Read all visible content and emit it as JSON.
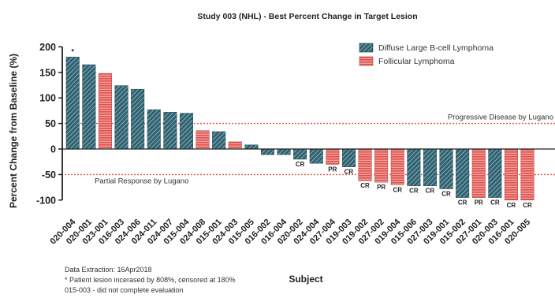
{
  "chart_data": {
    "type": "bar",
    "title": "Study 003 (NHL) - Best Percent Change in Target Lesion",
    "xlabel": "Subject",
    "ylabel": "Percent Change from Baseline (%)",
    "ylim": [
      -115,
      200
    ],
    "yticks": [
      200,
      150,
      100,
      50,
      0,
      -50,
      -100
    ],
    "grid": false,
    "legend_position": "top-right",
    "series": [
      {
        "name": "Diffuse Large B-cell Lymphoma",
        "color": "#2f6170",
        "pattern": "diagonal-hatch"
      },
      {
        "name": "Follicular Lymphoma",
        "color": "#e0534f",
        "pattern": "horizontal-stripes"
      }
    ],
    "bars": [
      {
        "subject": "020-004",
        "value": 180,
        "series": 0,
        "label": "*"
      },
      {
        "subject": "020-001",
        "value": 165,
        "series": 0,
        "label": ""
      },
      {
        "subject": "023-001",
        "value": 148,
        "series": 1,
        "label": ""
      },
      {
        "subject": "016-003",
        "value": 124,
        "series": 0,
        "label": ""
      },
      {
        "subject": "024-006",
        "value": 117,
        "series": 0,
        "label": ""
      },
      {
        "subject": "024-011",
        "value": 77,
        "series": 0,
        "label": ""
      },
      {
        "subject": "024-007",
        "value": 72,
        "series": 0,
        "label": ""
      },
      {
        "subject": "015-004",
        "value": 70,
        "series": 0,
        "label": ""
      },
      {
        "subject": "024-008",
        "value": 36,
        "series": 1,
        "label": ""
      },
      {
        "subject": "015-001",
        "value": 34,
        "series": 0,
        "label": ""
      },
      {
        "subject": "024-003",
        "value": 14,
        "series": 1,
        "label": ""
      },
      {
        "subject": "015-005",
        "value": 8,
        "series": 0,
        "label": ""
      },
      {
        "subject": "016-002",
        "value": -11,
        "series": 0,
        "label": ""
      },
      {
        "subject": "016-004",
        "value": -11,
        "series": 0,
        "label": ""
      },
      {
        "subject": "020-002",
        "value": -20,
        "series": 0,
        "label": "CR"
      },
      {
        "subject": "024-004",
        "value": -28,
        "series": 0,
        "label": ""
      },
      {
        "subject": "027-004",
        "value": -30,
        "series": 1,
        "label": "PR"
      },
      {
        "subject": "019-003",
        "value": -35,
        "series": 0,
        "label": "CR"
      },
      {
        "subject": "019-002",
        "value": -62,
        "series": 1,
        "label": "CR"
      },
      {
        "subject": "027-002",
        "value": -65,
        "series": 1,
        "label": "PR"
      },
      {
        "subject": "019-004",
        "value": -70,
        "series": 1,
        "label": "CR"
      },
      {
        "subject": "015-006",
        "value": -72,
        "series": 0,
        "label": "CR"
      },
      {
        "subject": "027-003",
        "value": -72,
        "series": 0,
        "label": "CR"
      },
      {
        "subject": "019-001",
        "value": -78,
        "series": 0,
        "label": "CR"
      },
      {
        "subject": "015-002",
        "value": -95,
        "series": 0,
        "label": "CR"
      },
      {
        "subject": "027-001",
        "value": -95,
        "series": 1,
        "label": "PR"
      },
      {
        "subject": "020-003",
        "value": -95,
        "series": 0,
        "label": "CR"
      },
      {
        "subject": "016-001",
        "value": -100,
        "series": 1,
        "label": "CR"
      },
      {
        "subject": "020-005",
        "value": -100,
        "series": 1,
        "label": "CR"
      }
    ],
    "reference_lines": [
      {
        "value": 50,
        "label": "Progressive Disease by Lugano",
        "color": "#e0534f"
      },
      {
        "value": -50,
        "label": "Partial Response by Lugano",
        "color": "#e0534f"
      }
    ]
  },
  "footnotes": {
    "extraction": "Data Extraction: 16Apr2018",
    "censored": "* Patient lesion incerased by 808%, censored at 180%",
    "incomplete": "015-003 - did not complete evaluation"
  }
}
